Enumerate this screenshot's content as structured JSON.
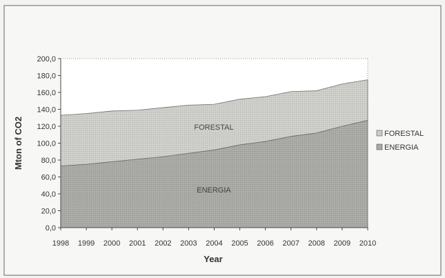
{
  "chart_data": {
    "type": "area",
    "stacked": true,
    "x": [
      1998,
      1999,
      2000,
      2001,
      2002,
      2003,
      2004,
      2005,
      2006,
      2007,
      2008,
      2009,
      2010
    ],
    "x_tick_labels": [
      "1998",
      "1999",
      "2000",
      "2001",
      "2002",
      "2003",
      "2004",
      "2005",
      "2006",
      "2007",
      "2008",
      "2009",
      "2010"
    ],
    "series": [
      {
        "name": "ENERGIA",
        "values": [
          73,
          75,
          78,
          81,
          84,
          88,
          92,
          98,
          102,
          108,
          112,
          120,
          127
        ],
        "color": "#a7a7a3"
      },
      {
        "name": "FORESTAL",
        "values": [
          60,
          60,
          60,
          58,
          58,
          57,
          54,
          54,
          53,
          53,
          50,
          50,
          48
        ],
        "color": "#cacac6"
      }
    ],
    "ylim": [
      0,
      200
    ],
    "y_ticks": [
      "0,0",
      "20,0",
      "40,0",
      "60,0",
      "80,0",
      "100,0",
      "120,0",
      "140,0",
      "160,0",
      "180,0",
      "200,0"
    ],
    "xlabel": "Year",
    "ylabel": "Mton of CO2",
    "legend_position": "right",
    "legend": [
      "FORESTAL",
      "ENERGIA"
    ],
    "area_labels": [
      "FORESTAL",
      "ENERGIA"
    ],
    "grid": false,
    "frame_color": "#444444"
  }
}
